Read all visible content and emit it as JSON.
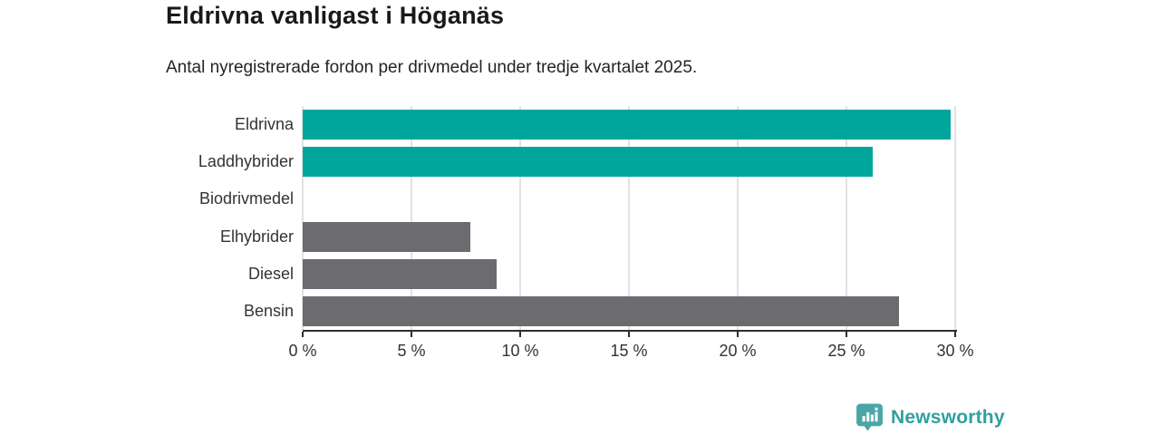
{
  "chart_data": {
    "type": "bar",
    "orientation": "horizontal",
    "title": "Eldrivna vanligast i Höganäs",
    "subtitle": "Antal nyregistrerade fordon per drivmedel under tredje kvartalet 2025.",
    "categories": [
      "Eldrivna",
      "Laddhybrider",
      "Biodrivmedel",
      "Elhybrider",
      "Diesel",
      "Bensin"
    ],
    "values": [
      29.8,
      26.2,
      0,
      7.7,
      8.9,
      27.4
    ],
    "unit": "%",
    "xlim": [
      0,
      30
    ],
    "x_ticks": [
      {
        "value": 0,
        "label": "0 %"
      },
      {
        "value": 5,
        "label": "5 %"
      },
      {
        "value": 10,
        "label": "10 %"
      },
      {
        "value": 15,
        "label": "15 %"
      },
      {
        "value": 20,
        "label": "20 %"
      },
      {
        "value": 25,
        "label": "25 %"
      },
      {
        "value": 30,
        "label": "30 %"
      }
    ],
    "bar_colors": [
      "#00a69c",
      "#00a69c",
      "#00a69c",
      "#6b6b70",
      "#6b6b70",
      "#6b6b70"
    ],
    "grid": "vertical",
    "legend": "none",
    "colors": {
      "highlight": "#00a69c",
      "neutral": "#6b6b70",
      "gridline": "#e2e2e2",
      "axis": "#2e2e2e",
      "label": "#333333"
    }
  },
  "footer": {
    "brand": "Newsworthy",
    "brand_color": "#2fa09f",
    "icon": "newsworthy-speech-bubble-bar-chart-icon",
    "icon_color": "#4aa6a6"
  }
}
